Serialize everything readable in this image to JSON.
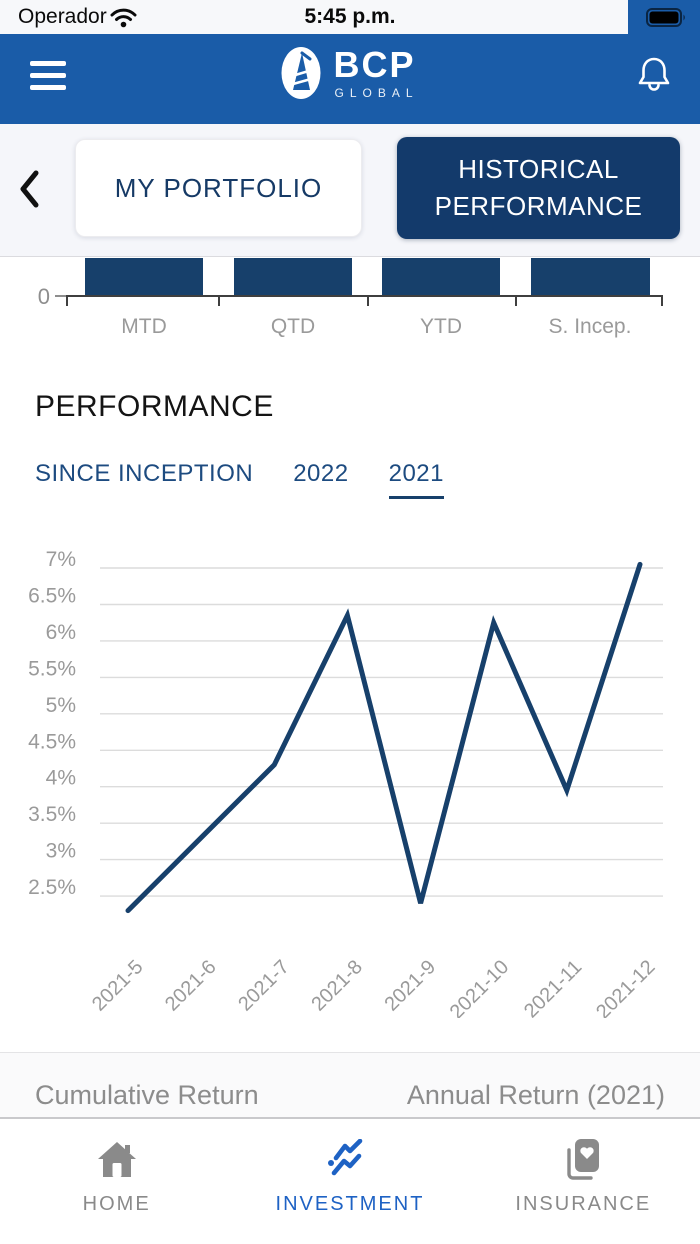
{
  "status_bar": {
    "carrier": "Operador",
    "time": "5:45 p.m."
  },
  "header": {
    "logo_text": "BCP",
    "logo_subtext": "GLOBAL"
  },
  "portfolio_tabs": {
    "my_portfolio": "MY PORTFOLIO",
    "historical_performance": "HISTORICAL PERFORMANCE"
  },
  "performance_section": {
    "title": "PERFORMANCE",
    "filters": [
      {
        "label": "SINCE INCEPTION",
        "active": false
      },
      {
        "label": "2022",
        "active": false
      },
      {
        "label": "2021",
        "active": true
      }
    ]
  },
  "chart_data": [
    {
      "type": "bar",
      "categories": [
        "MTD",
        "QTD",
        "YTD",
        "S. Incep."
      ],
      "visible_ytick": "0",
      "bar_color": "#17406B"
    },
    {
      "type": "line",
      "x": [
        "2021-5",
        "2021-6",
        "2021-7",
        "2021-8",
        "2021-9",
        "2021-10",
        "2021-11",
        "2021-12"
      ],
      "values": [
        2.3,
        3.3,
        4.3,
        6.35,
        2.4,
        6.25,
        3.95,
        7.05
      ],
      "yticks": [
        "7%",
        "6.5%",
        "6%",
        "5.5%",
        "5%",
        "4.5%",
        "4%",
        "3.5%",
        "3%",
        "2.5%"
      ],
      "ylim": [
        2.25,
        7.1
      ],
      "unit": "%",
      "line_color": "#17406B",
      "grid": true,
      "legend": false
    }
  ],
  "summary_headers": {
    "left": "Cumulative Return",
    "right": "Annual Return (2021)"
  },
  "bottom_nav": {
    "items": [
      {
        "label": "HOME",
        "icon": "home-icon",
        "active": false
      },
      {
        "label": "INVESTMENT",
        "icon": "investment-chart-icon",
        "active": true
      },
      {
        "label": "INSURANCE",
        "icon": "insurance-card-icon",
        "active": false
      }
    ]
  },
  "colors": {
    "header_blue": "#1A5CA8",
    "button_navy": "#133A6B",
    "chart_navy": "#17406B",
    "filter_blue": "#1D4B80",
    "active_nav_blue": "#1E62C4",
    "axis_gray": "#9A9A9A",
    "gridline_gray": "#DCDCDC"
  }
}
